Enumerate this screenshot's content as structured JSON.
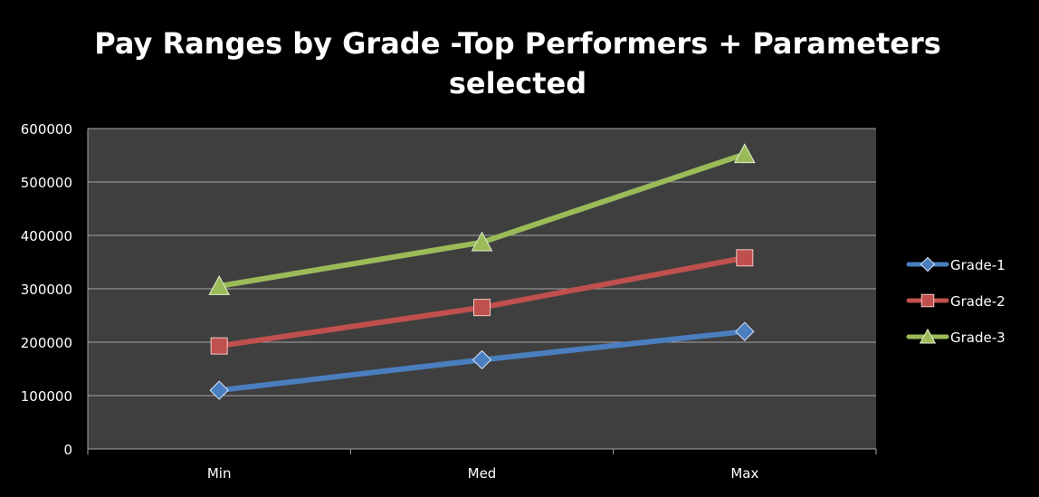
{
  "chart_data": {
    "type": "line",
    "title": "Pay Ranges by Grade -Top Performers + Parameters selected",
    "xlabel": "",
    "ylabel": "",
    "categories": [
      "Min",
      "Med",
      "Max"
    ],
    "ylim": [
      0,
      600000
    ],
    "yticks": [
      0,
      100000,
      200000,
      300000,
      400000,
      500000,
      600000
    ],
    "grid": true,
    "legend": "right",
    "series": [
      {
        "name": "Grade-1",
        "values": [
          110000,
          167000,
          220000
        ],
        "color": "#4a7ebf",
        "marker": "diamond"
      },
      {
        "name": "Grade-2",
        "values": [
          193000,
          265000,
          358000
        ],
        "color": "#c0504d",
        "marker": "square"
      },
      {
        "name": "Grade-3",
        "values": [
          305000,
          387000,
          552000
        ],
        "color": "#9bbb59",
        "marker": "triangle"
      }
    ]
  },
  "colors": {
    "background": "#000000",
    "plot_area": "#3f3f3f",
    "gridline": "#a6a6a6",
    "text": "#ffffff"
  }
}
